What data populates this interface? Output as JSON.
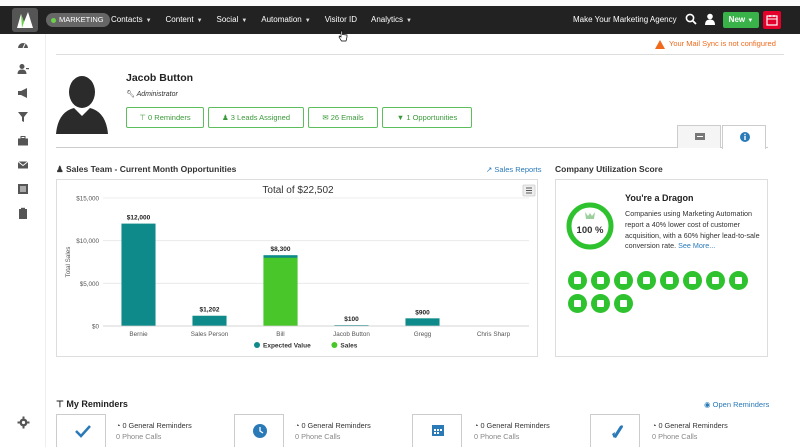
{
  "nav": {
    "brand_badge": "MARKETING",
    "items": [
      "Contacts",
      "Content",
      "Social",
      "Automation",
      "Visitor ID",
      "Analytics"
    ],
    "has_caret": [
      true,
      true,
      true,
      true,
      false,
      true
    ],
    "agency": "Make Your Marketing Agency",
    "new_label": "New"
  },
  "alert": {
    "text": "Your Mail Sync is not configured",
    "color": "#ef6a1c"
  },
  "profile": {
    "name": "Jacob Button",
    "role": "Administrator",
    "stats": [
      "0 Reminders",
      "3 Leads Assigned",
      "26 Emails",
      "1 Opportunities"
    ]
  },
  "sales": {
    "section_title": "Sales Team - Current Month Opportunities",
    "report_link": "Sales Reports"
  },
  "chart_data": {
    "type": "bar",
    "title": "Total of $22,502",
    "ylabel": "Total Sales",
    "xlabel": "",
    "ylim": [
      0,
      15000
    ],
    "y_ticks": [
      "$0",
      "$5,000",
      "$10,000",
      "$15,000"
    ],
    "y_tick_values": [
      0,
      5000,
      10000,
      15000
    ],
    "categories": [
      "Bernie",
      "Sales Person",
      "Bill",
      "Jacob Button",
      "Gregg",
      "Chris Sharp"
    ],
    "series": [
      {
        "name": "Expected Value",
        "color": "#0e8a8a",
        "values": [
          12000,
          1202,
          8300,
          100,
          900,
          0
        ]
      },
      {
        "name": "Sales",
        "color": "#48c62a",
        "values": [
          0,
          0,
          8000,
          0,
          0,
          0
        ]
      }
    ],
    "data_labels": [
      "$12,000",
      "$1,202",
      "$8,300",
      "$100",
      "$900",
      ""
    ],
    "legend_position": "bottom",
    "grid": true
  },
  "utilization": {
    "section_title": "Company Utilization Score",
    "percent_label": "100 %",
    "percent": 100,
    "headline": "You're a Dragon",
    "description": "Companies using Marketing Automation report a 40% lower cost of customer acquisition, with a 60% higher lead-to-sale conversion rate.",
    "see_more": "See More...",
    "color": "#2ec32e",
    "icon_count": 11
  },
  "reminders": {
    "title": "My Reminders",
    "open_link": "Open Reminders",
    "cards": [
      {
        "line1": "0 General Reminders",
        "line2": "0 Phone Calls"
      },
      {
        "line1": "0 General Reminders",
        "line2": "0 Phone Calls"
      },
      {
        "line1": "0 General Reminders",
        "line2": "0 Phone Calls"
      },
      {
        "line1": "0 General Reminders",
        "line2": "0 Phone Calls"
      }
    ]
  }
}
